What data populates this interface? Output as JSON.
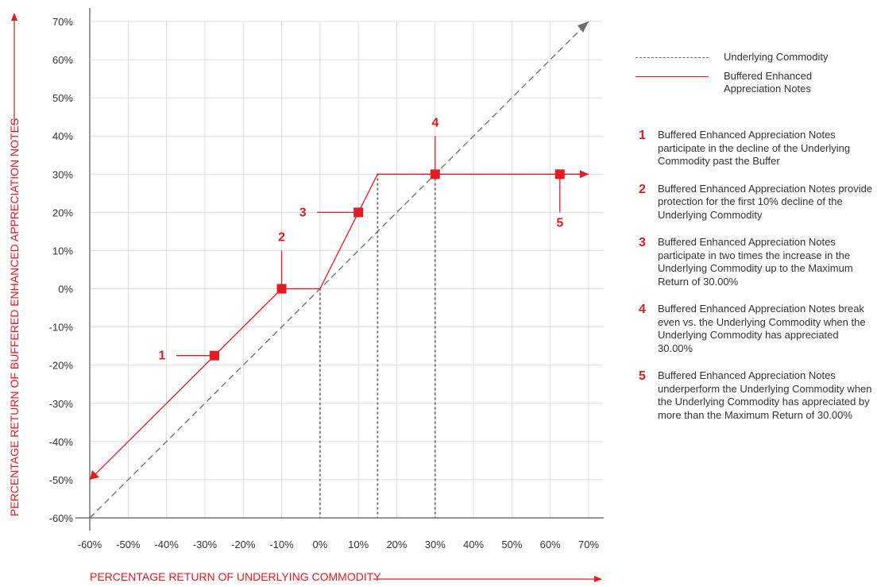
{
  "chart_data": {
    "type": "line",
    "xlabel": "PERCENTAGE RETURN OF UNDERLYING COMMODITY",
    "ylabel": "PERCENTAGE RETURN OF BUFFERED ENHANCED APPRECIATION NOTES",
    "x_ticks": [
      "-60%",
      "-50%",
      "-40%",
      "-30%",
      "-20%",
      "-10%",
      "0%",
      "10%",
      "20%",
      "30%",
      "40%",
      "50%",
      "60%",
      "70%"
    ],
    "y_ticks": [
      "70%",
      "60%",
      "50%",
      "40%",
      "30%",
      "20%",
      "10%",
      "0%",
      "-10%",
      "-20%",
      "-30%",
      "-40%",
      "-50%",
      "-60%"
    ],
    "xlim": [
      -60,
      70
    ],
    "ylim": [
      -60,
      70
    ],
    "grid": true,
    "legend_position": "right",
    "series": [
      {
        "name": "Underlying Commodity",
        "style": "dashed",
        "color": "#6b6b6b",
        "x": [
          -60,
          70
        ],
        "y": [
          -60,
          70
        ]
      },
      {
        "name": "Buffered Enhanced Appreciation Notes",
        "style": "solid",
        "color": "#e31b23",
        "x": [
          -60,
          -10,
          0,
          15,
          70
        ],
        "y": [
          -50,
          0,
          0,
          30,
          30
        ]
      }
    ],
    "markers": [
      {
        "label": "1",
        "x": -27.5,
        "y": -17.5
      },
      {
        "label": "2",
        "x": -10,
        "y": 0
      },
      {
        "label": "3",
        "x": 10,
        "y": 20
      },
      {
        "label": "4",
        "x": 30,
        "y": 30
      },
      {
        "label": "5",
        "x": 62.5,
        "y": 30
      }
    ],
    "dotted_verticals_x": [
      0,
      15,
      30
    ]
  },
  "legend": {
    "items": [
      {
        "label": "Underlying Commodity"
      },
      {
        "label": "Buffered Enhanced Appreciation Notes"
      }
    ]
  },
  "notes": [
    {
      "num": "1",
      "text": "Buffered Enhanced Appreciation Notes participate in the decline of the Underlying Commodity past the Buffer"
    },
    {
      "num": "2",
      "text": "Buffered Enhanced Appreciation Notes provide protection for the first 10% decline of the Underlying Commodity"
    },
    {
      "num": "3",
      "text": "Buffered Enhanced Appreciation Notes participate in two times the increase in the Underlying Commodity up to the Maximum Return of 30.00%"
    },
    {
      "num": "4",
      "text": "Buffered Enhanced Appreciation Notes break even vs. the Underlying Commodity when the Underlying Commodity has appreciated 30.00%"
    },
    {
      "num": "5",
      "text": "Buffered Enhanced Appreciation Notes underperform the Underlying Commodity when the Underlying Commodity has appreciated by more than the Maximum Return of 30.00%"
    }
  ]
}
